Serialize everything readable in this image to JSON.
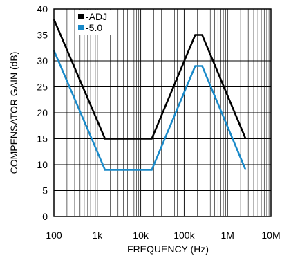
{
  "chart_data": {
    "type": "line",
    "xlabel": "FREQUENCY (Hz)",
    "ylabel": "COMPENSATOR GAIN (dB)",
    "x_scale": "log",
    "xlim": [
      100,
      10000000
    ],
    "ylim": [
      0,
      40
    ],
    "x_ticks": [
      100,
      1000,
      10000,
      100000,
      1000000,
      10000000
    ],
    "x_tick_labels": [
      "100",
      "1k",
      "10k",
      "100k",
      "1M",
      "10M"
    ],
    "y_ticks": [
      0,
      5,
      10,
      15,
      20,
      25,
      30,
      35,
      40
    ],
    "y_tick_labels": [
      "0",
      "5",
      "10",
      "15",
      "20",
      "25",
      "30",
      "35",
      "40"
    ],
    "grid": true,
    "legend_position": "top-left",
    "series": [
      {
        "name": "-ADJ",
        "color": "#000000",
        "points": [
          [
            100,
            38
          ],
          [
            1500,
            15
          ],
          [
            18000,
            15
          ],
          [
            180000,
            35
          ],
          [
            260000,
            35
          ],
          [
            2600000,
            15
          ]
        ]
      },
      {
        "name": "-5.0",
        "color": "#1a8ac9",
        "points": [
          [
            100,
            32
          ],
          [
            1500,
            9
          ],
          [
            18000,
            9
          ],
          [
            180000,
            29
          ],
          [
            260000,
            29
          ],
          [
            2600000,
            9
          ]
        ]
      }
    ]
  }
}
